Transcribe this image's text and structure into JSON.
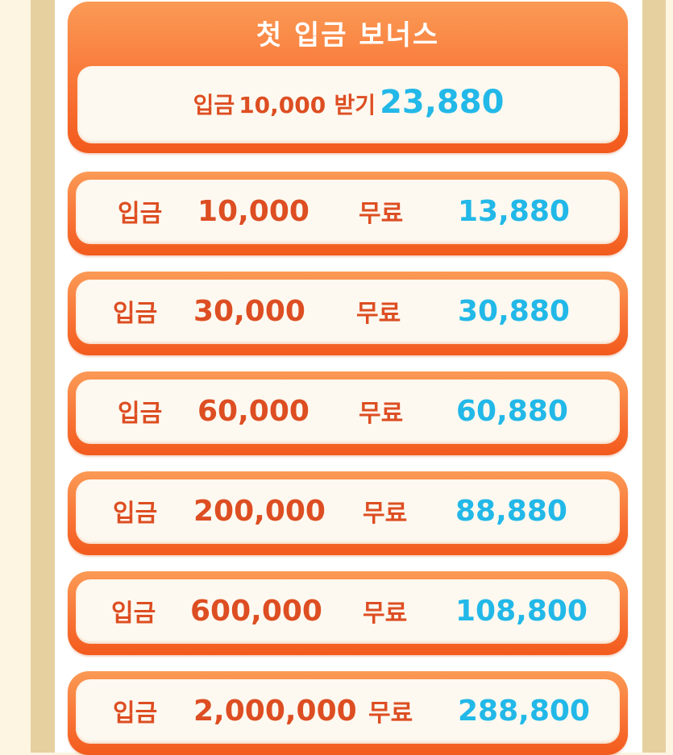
{
  "header": {
    "title": "첫 입금 보너스",
    "deposit_label": "입금",
    "deposit_amount": "10,000",
    "receive_label": "받기",
    "receive_amount": "23,880"
  },
  "rows": [
    {
      "deposit_label": "입금",
      "deposit": "10,000",
      "free_label": "무료",
      "free": "13,880"
    },
    {
      "deposit_label": "입금",
      "deposit": "30,000",
      "free_label": "무료",
      "free": "30,880"
    },
    {
      "deposit_label": "입금",
      "deposit": "60,000",
      "free_label": "무료",
      "free": "60,880"
    },
    {
      "deposit_label": "입금",
      "deposit": "200,000",
      "free_label": "무료",
      "free": "88,880"
    },
    {
      "deposit_label": "입금",
      "deposit": "600,000",
      "free_label": "무료",
      "free": "108,800"
    },
    {
      "deposit_label": "입금",
      "deposit": "2,000,000",
      "free_label": "무료",
      "free": "288,800"
    }
  ],
  "colors": {
    "orange": "#f87234",
    "text_orange": "#dd4e22",
    "blue": "#22b8e8",
    "tan": "#e6d0a0"
  }
}
